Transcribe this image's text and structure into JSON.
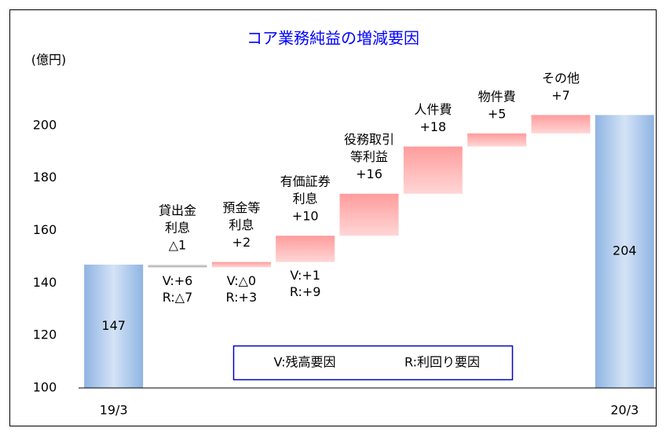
{
  "chart_data": {
    "type": "waterfall",
    "title": "コア業務純益の増減要因",
    "y_label": "(億円)",
    "categories": [
      [
        "19/3"
      ],
      [
        "貸出金",
        "利息"
      ],
      [
        "預金等",
        "利息"
      ],
      [
        "有価証券",
        "利息"
      ],
      [
        "役務取引",
        "等利益"
      ],
      [
        "人件費"
      ],
      [
        "物件費"
      ],
      [
        "その他"
      ],
      [
        "20/3"
      ]
    ],
    "values": [
      147,
      -1,
      2,
      10,
      16,
      18,
      5,
      7,
      204
    ],
    "value_labels": [
      "147",
      "△1",
      "+2",
      "+10",
      "+16",
      "+18",
      "+5",
      "+7",
      "204"
    ],
    "annotations": [
      null,
      [
        "V:+6",
        "R:△7"
      ],
      [
        "V:△0",
        "R:+3"
      ],
      [
        "V:+1",
        "R:+9"
      ],
      null,
      null,
      null,
      null,
      null
    ],
    "legend": [
      "V:残高要因",
      "R:利回り要因"
    ],
    "colors": {
      "total": "#8fb4e3",
      "increase": "#ff9c9c",
      "decrease": "#a6a6a6",
      "title": "#0000ff",
      "legend_border": "#0000cc"
    },
    "ylim": [
      100,
      220
    ],
    "yticks": [
      100,
      120,
      140,
      160,
      180,
      200
    ]
  }
}
